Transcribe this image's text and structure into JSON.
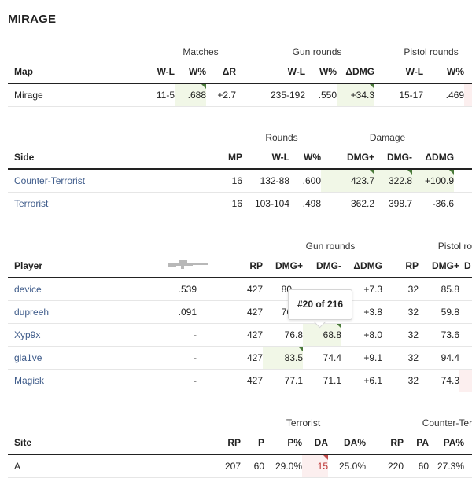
{
  "page_title": "MIRAGE",
  "map_table": {
    "groups": {
      "matches": "Matches",
      "gun_rounds": "Gun rounds",
      "pistol_rounds": "Pistol rounds"
    },
    "headers": [
      "Map",
      "W-L",
      "W%",
      "ΔR",
      "W-L",
      "W%",
      "ΔDMG",
      "W-L",
      "W%"
    ],
    "row": [
      "Mirage",
      "11-5",
      ".688",
      "+2.7",
      "235-192",
      ".550",
      "+34.3",
      "15-17",
      ".469"
    ]
  },
  "side_table": {
    "groups": {
      "rounds": "Rounds",
      "damage": "Damage"
    },
    "headers": [
      "Side",
      "MP",
      "W-L",
      "W%",
      "DMG+",
      "DMG-",
      "ΔDMG"
    ],
    "rows": [
      [
        "Counter-Terrorist",
        "16",
        "132-88",
        ".600",
        "423.7",
        "322.8",
        "+100.9"
      ],
      [
        "Terrorist",
        "16",
        "103-104",
        ".498",
        "362.2",
        "398.7",
        "-36.6"
      ]
    ]
  },
  "player_table": {
    "groups": {
      "gun_rounds": "Gun rounds",
      "pistol_rounds": "Pistol ro"
    },
    "headers": [
      "Player",
      "RP",
      "DMG+",
      "DMG-",
      "ΔDMG",
      "RP",
      "DMG+",
      "D"
    ],
    "icon": "rifle-icon",
    "rows": [
      [
        "device",
        ".539",
        "427",
        "80",
        "",
        "+7.3",
        "32",
        "85.8"
      ],
      [
        "dupreeh",
        ".091",
        "427",
        "76",
        "",
        "+3.8",
        "32",
        "59.8"
      ],
      [
        "Xyp9x",
        "-",
        "427",
        "76.8",
        "68.8",
        "+8.0",
        "32",
        "73.6"
      ],
      [
        "gla1ve",
        "-",
        "427",
        "83.5",
        "74.4",
        "+9.1",
        "32",
        "94.4"
      ],
      [
        "Magisk",
        "-",
        "427",
        "77.1",
        "71.1",
        "+6.1",
        "32",
        "74.3"
      ]
    ],
    "tooltip": "#20 of 216"
  },
  "site_table": {
    "groups": {
      "terrorist": "Terrorist",
      "counter_terrorist": "Counter-Ter"
    },
    "headers": [
      "Site",
      "RP",
      "P",
      "P%",
      "DA",
      "DA%",
      "RP",
      "PA",
      "PA%"
    ],
    "row": [
      "A",
      "207",
      "60",
      "29.0%",
      "15",
      "25.0%",
      "220",
      "60",
      "27.3%"
    ]
  },
  "colors": {
    "link": "#3e5b8a",
    "highlight_green": "#f1f7e7",
    "marker_green": "#4a7a3a",
    "marker_red": "#c24a4a"
  }
}
